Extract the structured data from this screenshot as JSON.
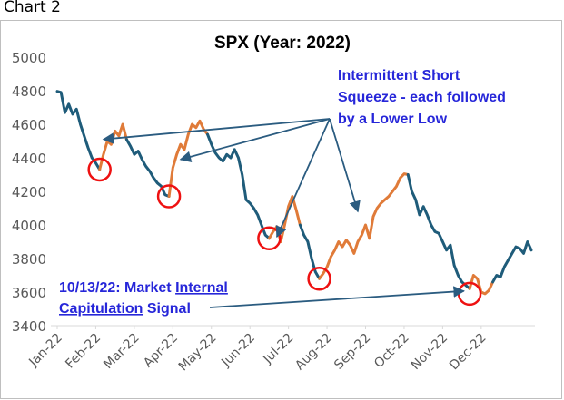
{
  "caption": "Chart 2",
  "chart_data": {
    "type": "line",
    "title": "SPX (Year: 2022)",
    "xlabel": "",
    "ylabel": "",
    "ylim": [
      3400,
      5000
    ],
    "yticks": [
      3400,
      3600,
      3800,
      4000,
      4200,
      4400,
      4600,
      4800,
      5000
    ],
    "xticks": [
      "Jan-22",
      "Feb-22",
      "Mar-22",
      "Apr-22",
      "May-22",
      "Jun-22",
      "Jul-22",
      "Aug-22",
      "Sep-22",
      "Oct-22",
      "Nov-22",
      "Dec-22"
    ],
    "grid": false,
    "colors": {
      "base": "#1f5c7a",
      "squeeze": "#e07b39",
      "annotation": "#2626d9",
      "circle": "#ee1111",
      "arrow": "#2b5c80"
    },
    "series": [
      {
        "x": [
          0,
          0.1,
          0.2,
          0.3,
          0.4,
          0.5,
          0.6,
          0.7,
          0.8,
          0.9,
          1.0,
          1.1,
          1.2,
          1.3,
          1.4,
          1.5,
          1.6,
          1.7,
          1.8,
          1.9,
          2.0,
          2.1,
          2.2,
          2.3,
          2.4,
          2.5,
          2.6,
          2.7,
          2.8,
          2.9,
          3.0,
          3.1,
          3.2,
          3.3,
          3.4,
          3.5,
          3.6,
          3.7,
          3.8,
          3.9,
          4.0,
          4.1,
          4.2,
          4.3,
          4.4,
          4.5,
          4.6,
          4.7,
          4.8,
          4.9,
          5.0,
          5.1,
          5.2,
          5.3,
          5.4,
          5.5,
          5.6,
          5.7,
          5.8,
          5.9,
          6.0,
          6.1,
          6.2,
          6.3,
          6.4,
          6.5,
          6.6,
          6.7,
          6.8,
          6.9,
          7.0,
          7.1,
          7.2,
          7.3,
          7.4,
          7.5,
          7.6,
          7.7,
          7.8,
          7.9,
          8.0,
          8.1,
          8.2,
          8.3,
          8.4,
          8.5,
          8.6,
          8.7,
          8.8,
          8.9,
          9.0,
          9.1,
          9.2,
          9.3,
          9.4,
          9.5,
          9.6,
          9.7,
          9.8,
          9.9,
          10.0,
          10.1,
          10.2,
          10.3,
          10.4,
          10.5,
          10.6,
          10.7,
          10.8,
          10.9,
          11.0,
          11.1,
          11.2,
          11.3,
          11.4,
          11.5,
          11.6,
          11.7,
          11.8,
          11.9,
          12.0,
          12.1,
          12.2,
          12.3
        ],
        "y": [
          4796,
          4790,
          4670,
          4720,
          4660,
          4690,
          4600,
          4530,
          4460,
          4400,
          4370,
          4330,
          4420,
          4500,
          4480,
          4560,
          4530,
          4600,
          4510,
          4470,
          4420,
          4440,
          4390,
          4350,
          4320,
          4280,
          4250,
          4230,
          4180,
          4170,
          4340,
          4420,
          4480,
          4450,
          4540,
          4600,
          4580,
          4620,
          4570,
          4540,
          4480,
          4430,
          4400,
          4380,
          4420,
          4400,
          4450,
          4400,
          4300,
          4150,
          4130,
          4100,
          4060,
          4000,
          3940,
          3920,
          3960,
          3990,
          3900,
          4000,
          4110,
          4170,
          4090,
          4000,
          3940,
          3900,
          3800,
          3720,
          3680,
          3710,
          3750,
          3810,
          3850,
          3900,
          3870,
          3910,
          3880,
          3830,
          3900,
          3940,
          4000,
          3920,
          4050,
          4100,
          4130,
          4150,
          4170,
          4200,
          4230,
          4280,
          4305,
          4300,
          4200,
          4150,
          4060,
          4110,
          4060,
          4000,
          3960,
          3950,
          3900,
          3850,
          3880,
          3760,
          3700,
          3660,
          3640,
          3620,
          3700,
          3680,
          3600,
          3590,
          3610,
          3660,
          3700,
          3690,
          3750,
          3790,
          3830,
          3870,
          3860,
          3830,
          3900,
          3850
        ]
      }
    ],
    "annotations": {
      "squeeze_title_1": "Intermittent Short",
      "squeeze_title_2": "Squeeze - each followed",
      "squeeze_title_3": "by a Lower Low",
      "signal_line1_part1": "10/13/22: Market ",
      "signal_line1_part2": "Internal",
      "signal_line2_part1": "Capitulation",
      "signal_line2_part2": " Signal"
    }
  }
}
